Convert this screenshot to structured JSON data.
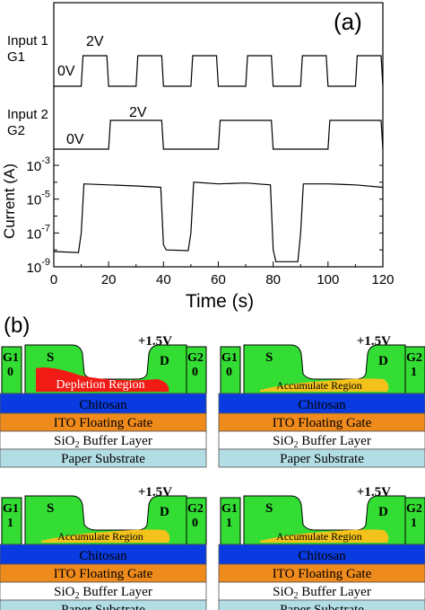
{
  "panel_a": {
    "label": "(a)",
    "input1": {
      "label": "Input 1",
      "gate": "G1",
      "high": "2V",
      "low": "0V"
    },
    "input2": {
      "label": "Input 2",
      "gate": "G2",
      "high": "2V",
      "low": "0V"
    },
    "ylabel": "Current (A)",
    "xlabel": "Time (s)",
    "xticks": [
      "0",
      "20",
      "40",
      "60",
      "80",
      "100",
      "120"
    ]
  },
  "chart_data": [
    {
      "type": "line",
      "name_ref": "input1",
      "x": [
        0,
        10,
        20,
        30,
        40,
        50,
        60,
        70,
        80,
        90,
        100,
        110,
        120
      ],
      "values_level": [
        "low",
        "low→high",
        "high→low",
        "low→high",
        "high→low",
        "low→high",
        "high→low",
        "low→high",
        "high→low",
        "low→high",
        "high→low",
        "low→high",
        "high"
      ],
      "transitions_s": [
        10,
        20,
        30,
        40,
        50,
        60,
        70,
        80,
        90,
        100,
        110,
        120
      ],
      "ylim_V": [
        0,
        2
      ]
    },
    {
      "type": "line",
      "name_ref": "input2",
      "transitions_s": [
        20,
        40,
        60,
        80,
        100,
        120
      ],
      "ylim_V": [
        0,
        2
      ]
    },
    {
      "type": "line",
      "x": [
        0,
        9,
        10,
        11,
        20,
        30,
        39,
        40,
        41,
        49,
        50,
        51,
        60,
        70,
        79,
        80,
        81,
        89,
        90,
        91,
        100,
        110,
        120
      ],
      "values": [
        8e-09,
        7e-09,
        1e-07,
        8e-05,
        7e-05,
        6e-05,
        5e-05,
        2e-08,
        1e-08,
        9e-09,
        1e-07,
        0.0001,
        8e-05,
        9e-05,
        7e-05,
        1e-08,
        2e-09,
        2e-09,
        1e-07,
        8e-05,
        8e-05,
        7e-05,
        5e-05
      ],
      "xlim": [
        0,
        120
      ],
      "ylim": [
        1e-09,
        0.001
      ],
      "yscale": "log",
      "ytick_labels": [
        {
          "base": "10",
          "exp": "-9"
        },
        {
          "base": "10",
          "exp": "-7"
        },
        {
          "base": "10",
          "exp": "-5"
        },
        {
          "base": "10",
          "exp": "-3"
        }
      ]
    }
  ],
  "panel_b": {
    "label": "(b)",
    "voltage": "+1.5V",
    "source": "S",
    "drain": "D",
    "layers": {
      "chitosan": "Chitosan",
      "ito": "ITO Floating Gate",
      "sio2_main": "SiO",
      "sio2_sub": "2",
      "sio2_rest": " Buffer Layer",
      "paper": "Paper Substrate"
    },
    "colors": {
      "gate_green": "#33dd33",
      "chitosan_blue": "#0a3be0",
      "ito_orange": "#ef8a1c",
      "paper_teal": "#b3dde5",
      "depletion_red": "#f21a14",
      "accumulate_yellow": "#f3c21b"
    },
    "devices": [
      {
        "g1": "G1",
        "g1_val": "0",
        "g2": "G2",
        "g2_val": "0",
        "region": "Depletion Region",
        "type": "depletion"
      },
      {
        "g1": "G1",
        "g1_val": "0",
        "g2": "G2",
        "g2_val": "1",
        "region": "Accumulate Region",
        "type": "accumulate"
      },
      {
        "g1": "G1",
        "g1_val": "1",
        "g2": "G2",
        "g2_val": "0",
        "region": "Accumulate Region",
        "type": "accumulate"
      },
      {
        "g1": "G1",
        "g1_val": "1",
        "g2": "G2",
        "g2_val": "1",
        "region": "Accumulate Region",
        "type": "accumulate"
      }
    ]
  }
}
